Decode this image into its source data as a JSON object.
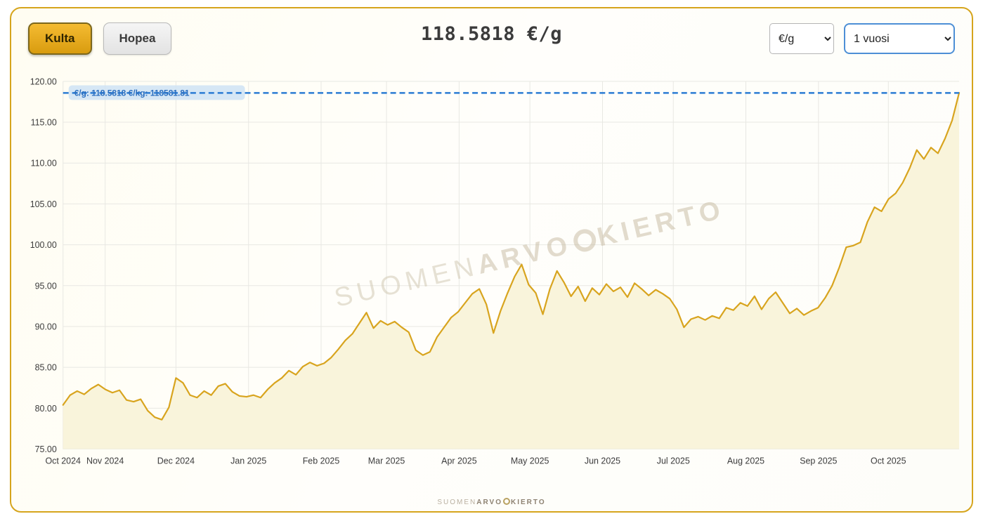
{
  "widget": {
    "tabs": [
      {
        "label": "Kulta",
        "active": true
      },
      {
        "label": "Hopea",
        "active": false
      }
    ],
    "price_display": "118.5818 €/g",
    "unit_select": {
      "value": "€/g"
    },
    "range_select": {
      "value": "1 vuosi"
    }
  },
  "watermark": {
    "part1": "SUOMEN",
    "part2": "ARVO",
    "part3": "KIERTO"
  },
  "footer": {
    "part1": "SUOMEN",
    "part2": "ARVO",
    "part3": "KIERTO"
  },
  "chart_data": {
    "type": "area",
    "title": "",
    "xlabel": "",
    "ylabel": "",
    "grid": true,
    "ylim": [
      75,
      120
    ],
    "y_ticks": [
      75,
      80,
      85,
      90,
      95,
      100,
      105,
      110,
      115,
      120
    ],
    "x_ticks": [
      {
        "label": "Oct 2024",
        "pos": 0
      },
      {
        "label": "Nov 2024",
        "pos": 0.047
      },
      {
        "label": "Dec 2024",
        "pos": 0.126
      },
      {
        "label": "Jan 2025",
        "pos": 0.207
      },
      {
        "label": "Feb 2025",
        "pos": 0.288
      },
      {
        "label": "Mar 2025",
        "pos": 0.361
      },
      {
        "label": "Apr 2025",
        "pos": 0.442
      },
      {
        "label": "May 2025",
        "pos": 0.521
      },
      {
        "label": "Jun 2025",
        "pos": 0.602
      },
      {
        "label": "Jul 2025",
        "pos": 0.681
      },
      {
        "label": "Aug 2025",
        "pos": 0.762
      },
      {
        "label": "Sep 2025",
        "pos": 0.843
      },
      {
        "label": "Oct 2025",
        "pos": 0.921
      }
    ],
    "line_color": "#d8a41e",
    "fill_color": "#f9f4db",
    "series": [
      {
        "name": "Kulta",
        "unit": "€/g",
        "values": [
          80.4,
          81.6,
          82.1,
          81.7,
          82.4,
          82.9,
          82.3,
          81.9,
          82.2,
          81.0,
          80.8,
          81.1,
          79.7,
          78.9,
          78.6,
          80.1,
          83.7,
          83.1,
          81.6,
          81.3,
          82.1,
          81.6,
          82.7,
          83.0,
          82.0,
          81.5,
          81.4,
          81.6,
          81.3,
          82.3,
          83.1,
          83.7,
          84.6,
          84.1,
          85.1,
          85.6,
          85.2,
          85.5,
          86.2,
          87.2,
          88.3,
          89.1,
          90.4,
          91.7,
          89.8,
          90.7,
          90.2,
          90.6,
          89.9,
          89.3,
          87.1,
          86.5,
          86.9,
          88.7,
          89.9,
          91.1,
          91.8,
          92.9,
          94.0,
          94.6,
          92.7,
          89.2,
          91.9,
          94.1,
          96.1,
          97.6,
          95.1,
          94.1,
          91.5,
          94.6,
          96.8,
          95.4,
          93.7,
          94.9,
          93.1,
          94.7,
          93.9,
          95.2,
          94.3,
          94.8,
          93.6,
          95.3,
          94.6,
          93.8,
          94.5,
          94.0,
          93.4,
          92.1,
          89.9,
          90.9,
          91.2,
          90.8,
          91.3,
          91.0,
          92.3,
          92.0,
          92.9,
          92.5,
          93.7,
          92.1,
          93.4,
          94.2,
          92.9,
          91.6,
          92.2,
          91.4,
          91.9,
          92.3,
          93.5,
          95.0,
          97.2,
          99.7,
          99.9,
          100.3,
          102.8,
          104.6,
          104.1,
          105.6,
          106.3,
          107.6,
          109.4,
          111.6,
          110.5,
          111.9,
          111.2,
          113.0,
          115.2,
          118.6
        ]
      }
    ],
    "reference_line": {
      "value": 118.5818,
      "label": "€/g: 118.5818  €/kg: 118581.81",
      "color": "#2b7cd3"
    }
  }
}
